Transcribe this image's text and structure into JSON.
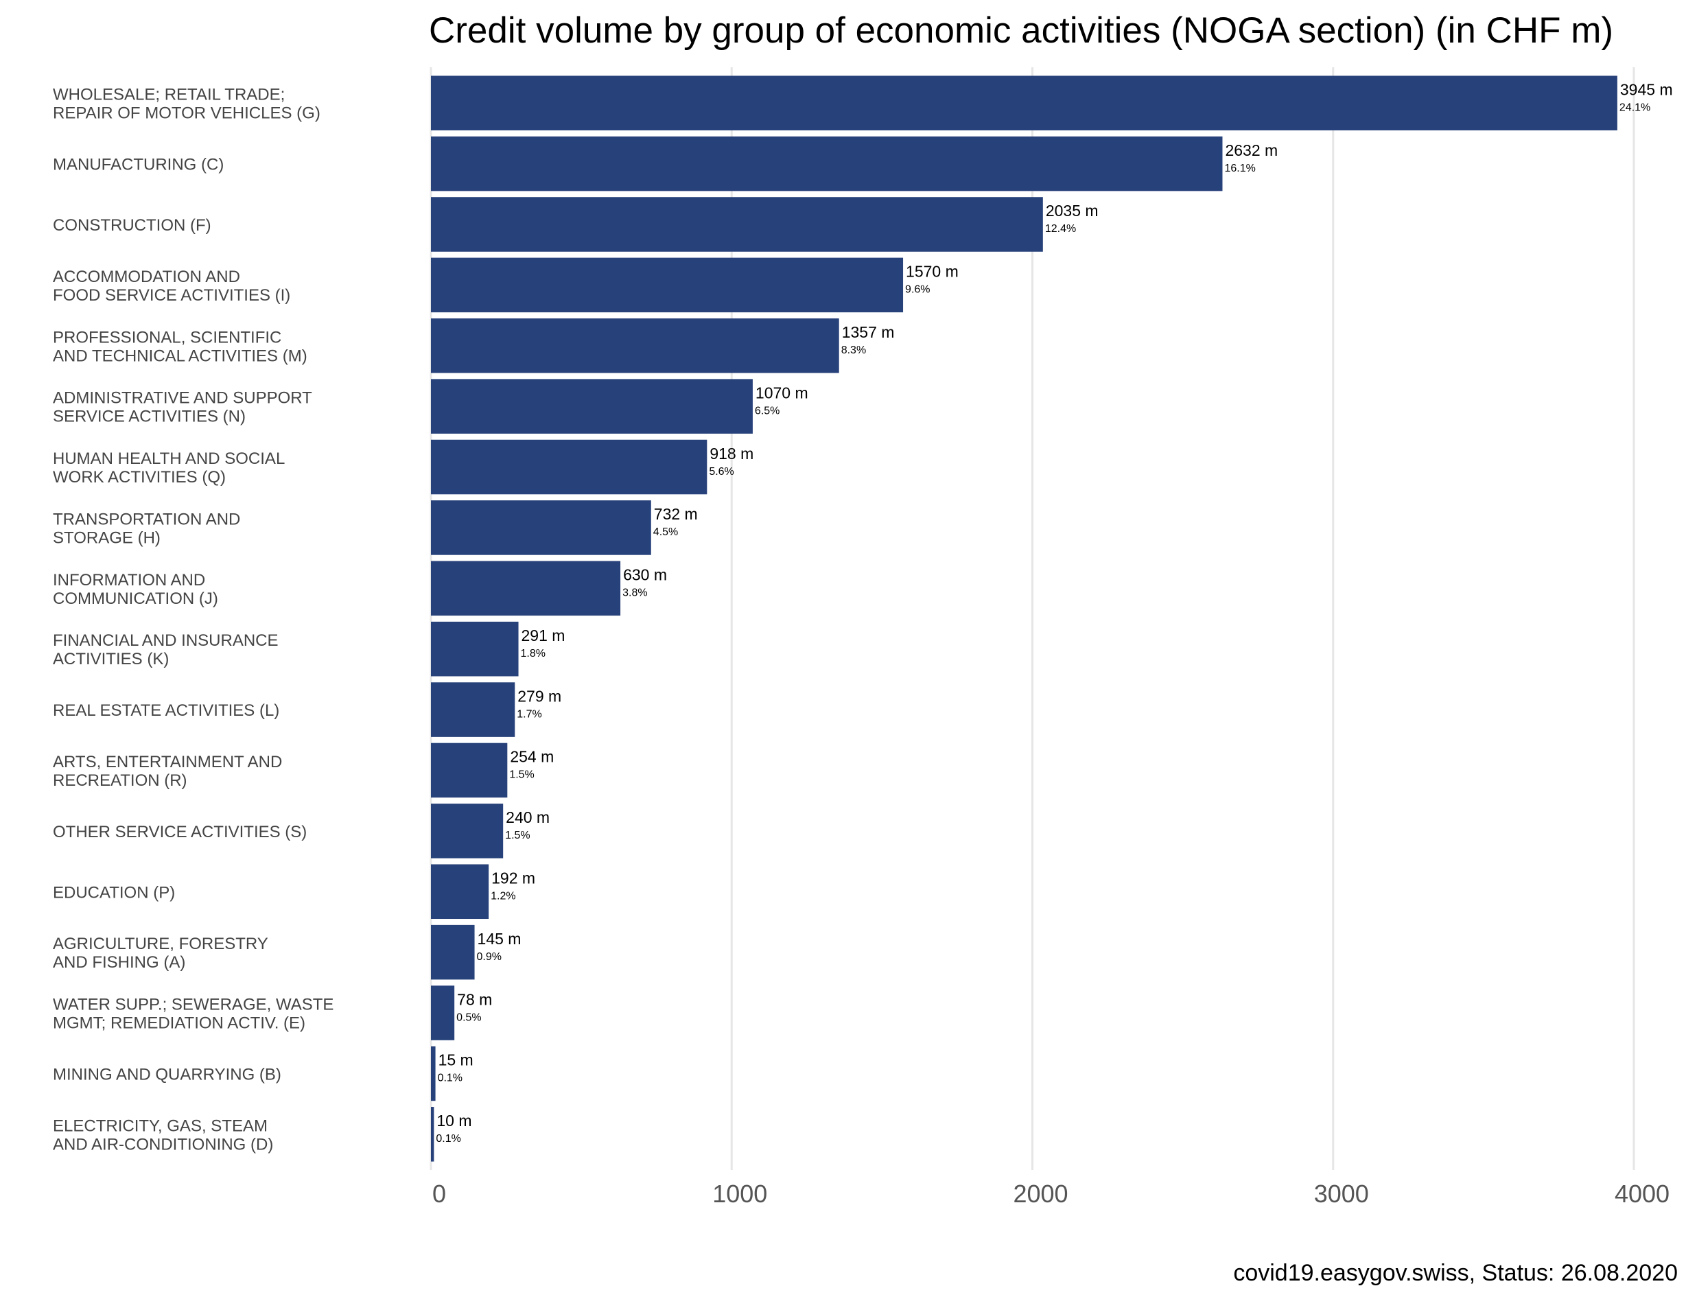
{
  "chart_data": {
    "type": "bar",
    "orientation": "horizontal",
    "title": "Credit volume by group of economic activities (NOGA section) (in CHF m)",
    "caption": "covid19.easygov.swiss, Status: 26.08.2020",
    "bar_color": "#27417a",
    "xlim": [
      0,
      4000
    ],
    "xticks": [
      "0",
      "1000",
      "2000",
      "3000",
      "4000"
    ],
    "xtick_values": [
      0,
      1000,
      2000,
      3000,
      4000
    ],
    "grid": true,
    "legend": "none",
    "categories": [
      [
        "WHOLESALE; RETAIL TRADE;",
        "REPAIR OF MOTOR VEHICLES (G)"
      ],
      [
        "MANUFACTURING (C)"
      ],
      [
        "CONSTRUCTION (F)"
      ],
      [
        "ACCOMMODATION AND",
        "FOOD SERVICE ACTIVITIES (I)"
      ],
      [
        "PROFESSIONAL, SCIENTIFIC",
        "AND TECHNICAL ACTIVITIES (M)"
      ],
      [
        "ADMINISTRATIVE AND SUPPORT",
        "SERVICE ACTIVITIES (N)"
      ],
      [
        "HUMAN HEALTH AND SOCIAL",
        "WORK ACTIVITIES (Q)"
      ],
      [
        "TRANSPORTATION AND",
        "STORAGE (H)"
      ],
      [
        "INFORMATION AND",
        "COMMUNICATION (J)"
      ],
      [
        "FINANCIAL AND INSURANCE",
        "ACTIVITIES (K)"
      ],
      [
        "REAL ESTATE ACTIVITIES (L)"
      ],
      [
        "ARTS, ENTERTAINMENT AND",
        "RECREATION (R)"
      ],
      [
        "OTHER SERVICE ACTIVITIES (S)"
      ],
      [
        "EDUCATION (P)"
      ],
      [
        "AGRICULTURE, FORESTRY",
        "AND FISHING (A)"
      ],
      [
        "WATER SUPP.; SEWERAGE, WASTE",
        "MGMT; REMEDIATION ACTIV. (E)"
      ],
      [
        "MINING AND QUARRYING (B)"
      ],
      [
        "ELECTRICITY, GAS, STEAM",
        "AND AIR-CONDITIONING (D)"
      ]
    ],
    "values": [
      3945,
      2632,
      2035,
      1570,
      1357,
      1070,
      918,
      732,
      630,
      291,
      279,
      254,
      240,
      192,
      145,
      78,
      15,
      10
    ],
    "value_labels": [
      "3945 m",
      "2632 m",
      "2035 m",
      "1570 m",
      "1357 m",
      "1070 m",
      "918 m",
      "732 m",
      "630 m",
      "291 m",
      "279 m",
      "254 m",
      "240 m",
      "192 m",
      "145 m",
      "78 m",
      "15 m",
      "10 m"
    ],
    "percent_labels": [
      "24.1%",
      "16.1%",
      "12.4%",
      "9.6%",
      "8.3%",
      "6.5%",
      "5.6%",
      "4.5%",
      "3.8%",
      "1.8%",
      "1.7%",
      "1.5%",
      "1.5%",
      "1.2%",
      "0.9%",
      "0.5%",
      "0.1%",
      "0.1%"
    ]
  }
}
